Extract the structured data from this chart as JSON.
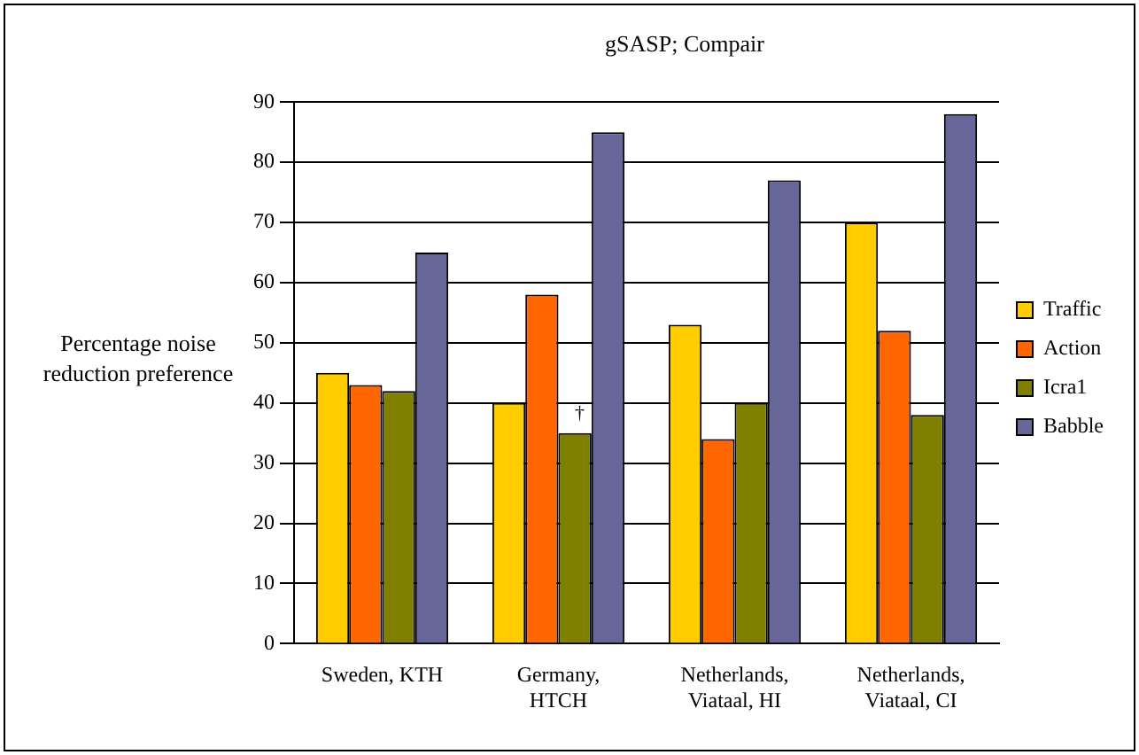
{
  "chart_data": {
    "type": "bar",
    "title": "gSASP; Compair",
    "ylabel": "Percentage noise reduction preference",
    "categories": [
      "Sweden, KTH",
      "Germany,\nHTCH",
      "Netherlands,\nViataal, HI",
      "Netherlands,\nViataal, CI"
    ],
    "series": [
      {
        "name": "Traffic",
        "color": "#ffcc00",
        "values": [
          45,
          40,
          53,
          70
        ]
      },
      {
        "name": "Action",
        "color": "#ff6600",
        "values": [
          43,
          58,
          34,
          52
        ]
      },
      {
        "name": "Icra1",
        "color": "#808000",
        "values": [
          42,
          35,
          40,
          38
        ]
      },
      {
        "name": "Babble",
        "color": "#666699",
        "values": [
          65,
          85,
          77,
          88
        ]
      }
    ],
    "annotations": [
      {
        "text": "†",
        "x": "Germany,\nHTCH",
        "y": 35
      }
    ],
    "ylim": [
      0,
      90
    ],
    "yticks": [
      0,
      10,
      20,
      30,
      40,
      50,
      60,
      70,
      80,
      90
    ],
    "grid": "y",
    "legend": "right"
  }
}
